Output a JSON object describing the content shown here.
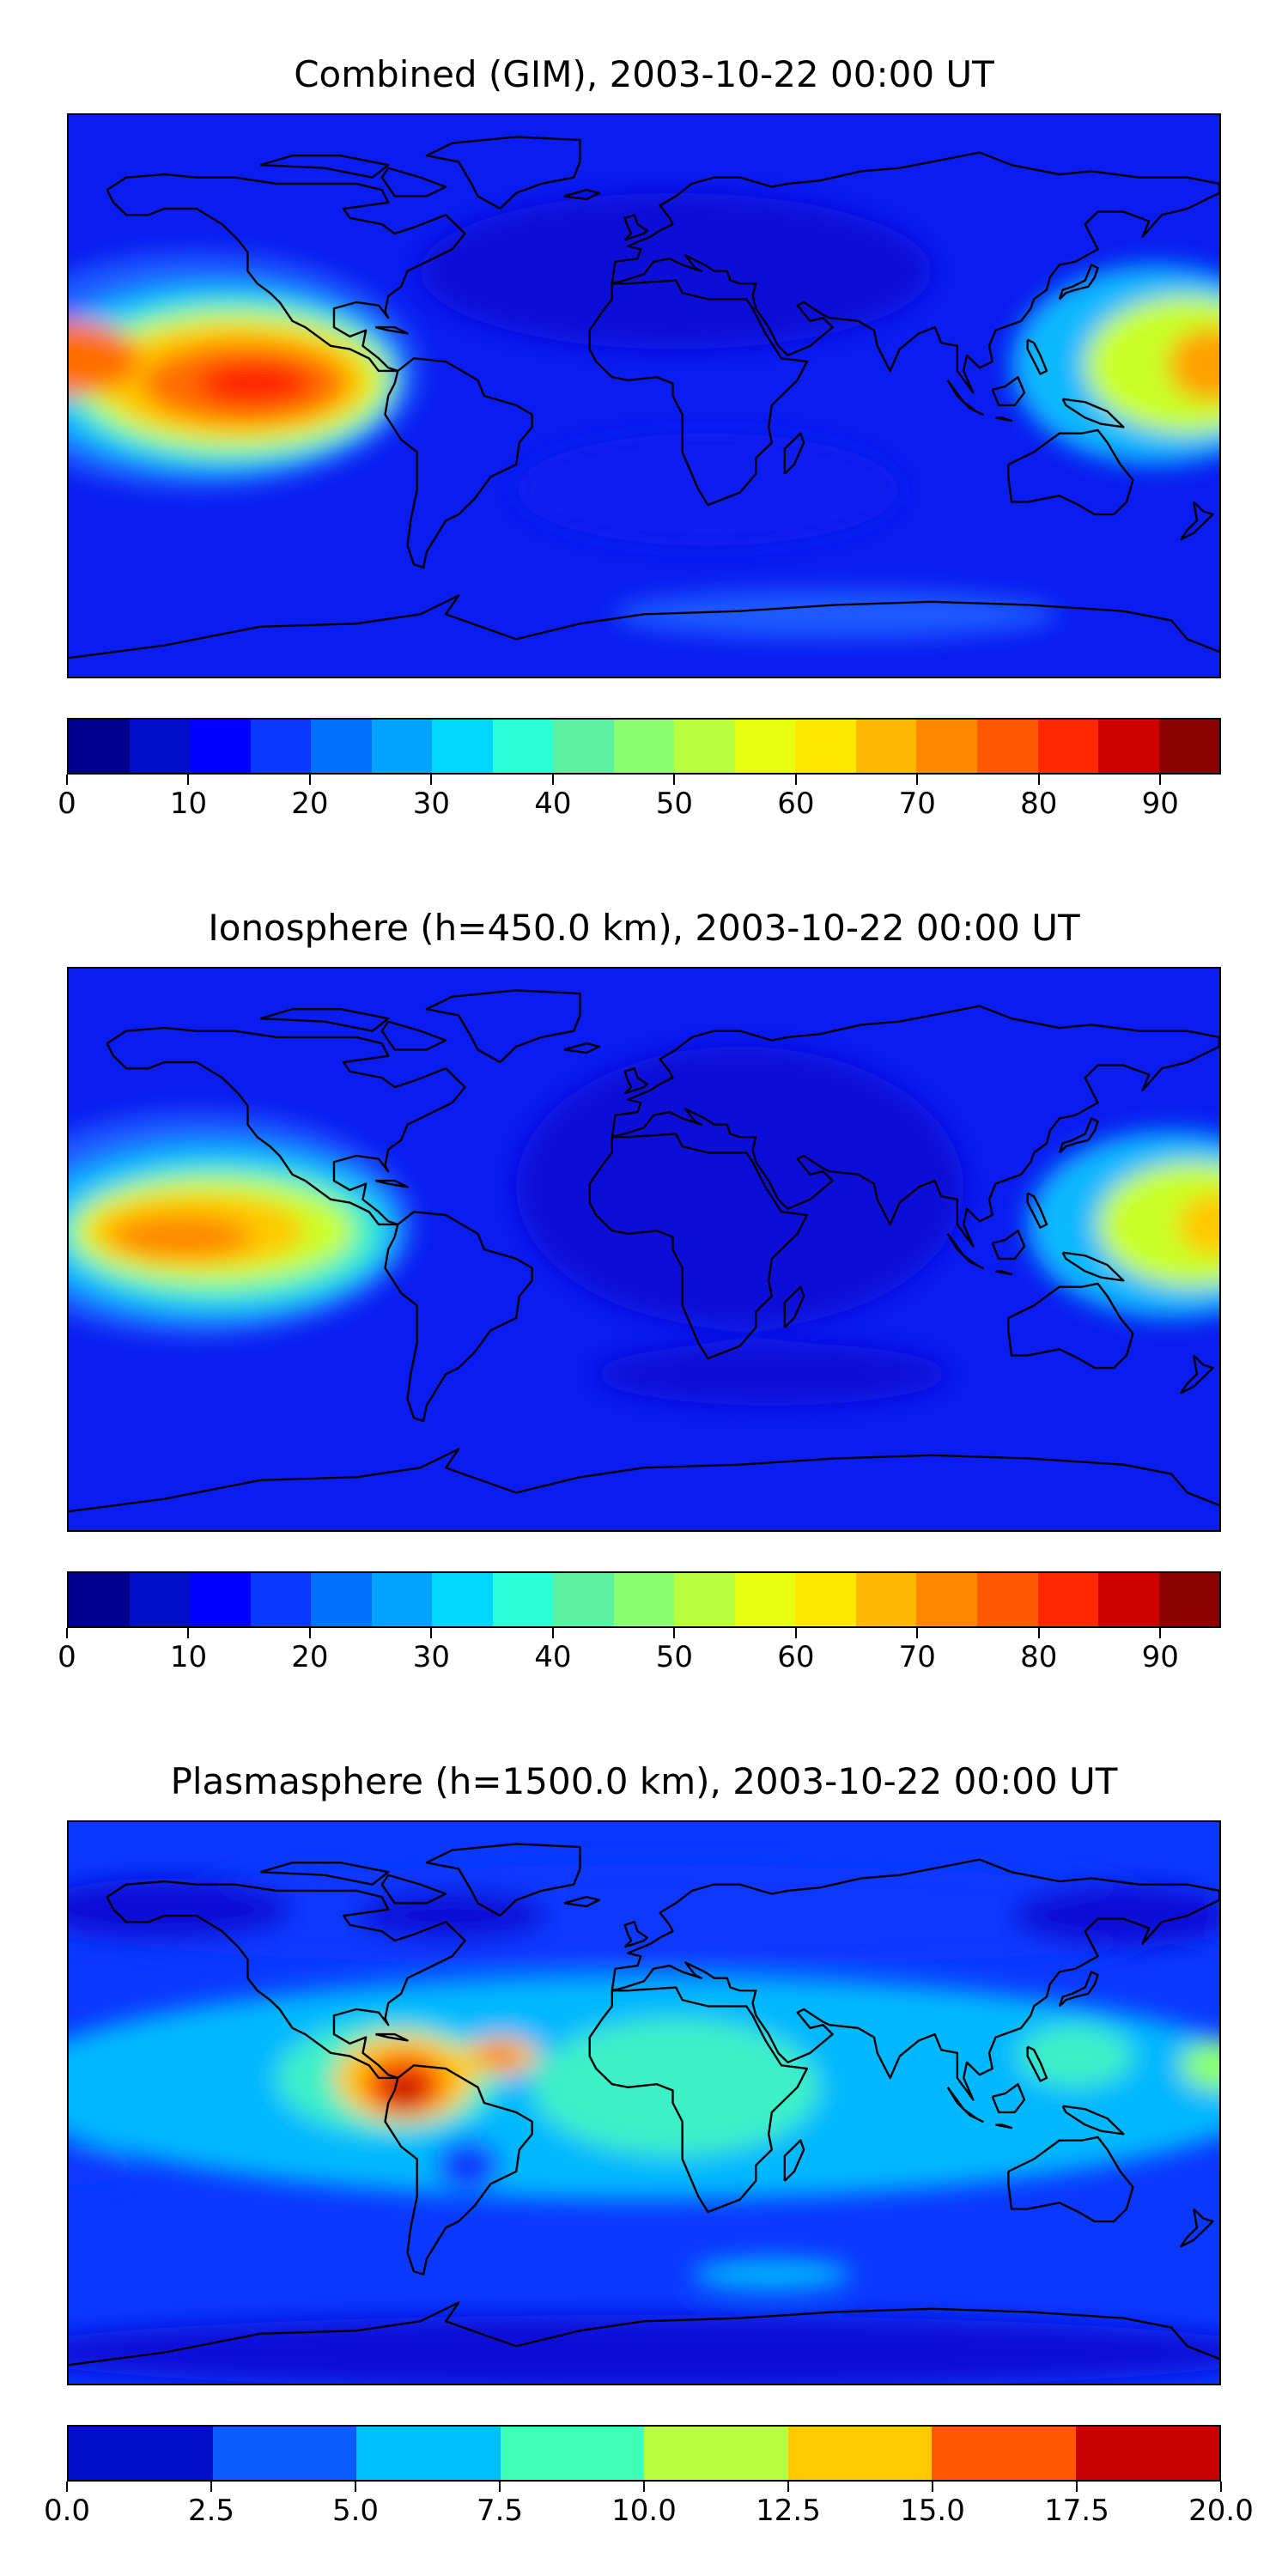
{
  "panels": [
    {
      "title": "Combined (GIM), 2003-10-22 00:00 UT",
      "base_color": "#0a1cf0",
      "blobs": [
        {
          "lon": -140,
          "lat": 8,
          "rlon": 70,
          "rlat": 38,
          "color": "#1e5cff"
        },
        {
          "lon": -135,
          "lat": 6,
          "rlon": 58,
          "rlat": 30,
          "color": "#10b8ff"
        },
        {
          "lon": -130,
          "lat": 5,
          "rlon": 52,
          "rlat": 26,
          "color": "#3cf0c8"
        },
        {
          "lon": -128,
          "lat": 5,
          "rlon": 48,
          "rlat": 22,
          "color": "#c8ff28"
        },
        {
          "lon": -128,
          "lat": 5,
          "rlon": 42,
          "rlat": 18,
          "color": "#ffc800"
        },
        {
          "lon": -125,
          "lat": 4,
          "rlon": 32,
          "rlat": 13,
          "color": "#ff6e00"
        },
        {
          "lon": -122,
          "lat": 4,
          "rlon": 18,
          "rlat": 7,
          "color": "#ff2000"
        },
        {
          "lon": -180,
          "lat": 12,
          "rlon": 22,
          "rlat": 12,
          "color": "#ff6e00"
        },
        {
          "lon": 160,
          "lat": 10,
          "rlon": 45,
          "rlat": 32,
          "color": "#10b8ff"
        },
        {
          "lon": 170,
          "lat": 10,
          "rlon": 32,
          "rlat": 22,
          "color": "#c8ff28"
        },
        {
          "lon": 178,
          "lat": 10,
          "rlon": 14,
          "rlat": 12,
          "color": "#ffa000"
        },
        {
          "lon": 10,
          "lat": 40,
          "rlon": 80,
          "rlat": 25,
          "color": "#0810d8"
        },
        {
          "lon": 20,
          "lat": -30,
          "rlon": 60,
          "rlat": 18,
          "color": "#0a1cf0"
        },
        {
          "lon": 60,
          "lat": -70,
          "rlon": 70,
          "rlat": 8,
          "color": "#1e5cff"
        }
      ],
      "colorbar": {
        "colors": [
          "#00008e",
          "#0010c8",
          "#0000ff",
          "#0a38ff",
          "#0070ff",
          "#00a4ff",
          "#00d8ff",
          "#28ffd8",
          "#5cf0a0",
          "#8cff70",
          "#b8ff40",
          "#e8ff10",
          "#ffe800",
          "#ffb800",
          "#ff8800",
          "#ff5800",
          "#ff2800",
          "#d00000",
          "#8c0000"
        ],
        "ticks": [
          "0",
          "10",
          "20",
          "30",
          "40",
          "50",
          "60",
          "70",
          "80",
          "90"
        ],
        "tick_values": [
          0,
          10,
          20,
          30,
          40,
          50,
          60,
          70,
          80,
          90
        ],
        "vmin": 0,
        "vmax": 95
      }
    },
    {
      "title": "Ionosphere  (h=450.0 km), 2003-10-22 00:00 UT",
      "base_color": "#0a1cf0",
      "blobs": [
        {
          "lon": 30,
          "lat": 20,
          "rlon": 70,
          "rlat": 45,
          "color": "#0810d8"
        },
        {
          "lon": -140,
          "lat": 8,
          "rlon": 68,
          "rlat": 36,
          "color": "#1e5cff"
        },
        {
          "lon": -135,
          "lat": 6,
          "rlon": 58,
          "rlat": 28,
          "color": "#10b8ff"
        },
        {
          "lon": -132,
          "lat": 5,
          "rlon": 50,
          "rlat": 22,
          "color": "#3cf0c8"
        },
        {
          "lon": -135,
          "lat": 6,
          "rlon": 44,
          "rlat": 17,
          "color": "#c8ff28"
        },
        {
          "lon": -140,
          "lat": 6,
          "rlon": 34,
          "rlat": 12,
          "color": "#ffc800"
        },
        {
          "lon": -145,
          "lat": 4,
          "rlon": 22,
          "rlat": 7,
          "color": "#ff8800"
        },
        {
          "lon": 165,
          "lat": 8,
          "rlon": 45,
          "rlat": 30,
          "color": "#10b8ff"
        },
        {
          "lon": 172,
          "lat": 8,
          "rlon": 30,
          "rlat": 20,
          "color": "#c8ff28"
        },
        {
          "lon": 179,
          "lat": 8,
          "rlon": 12,
          "rlat": 10,
          "color": "#ffc800"
        },
        {
          "lon": 40,
          "lat": -40,
          "rlon": 55,
          "rlat": 10,
          "color": "#0810d8"
        }
      ],
      "colorbar": {
        "colors": [
          "#00008e",
          "#0010c8",
          "#0000ff",
          "#0a38ff",
          "#0070ff",
          "#00a4ff",
          "#00d8ff",
          "#28ffd8",
          "#5cf0a0",
          "#8cff70",
          "#b8ff40",
          "#e8ff10",
          "#ffe800",
          "#ffb800",
          "#ff8800",
          "#ff5800",
          "#ff2800",
          "#d00000",
          "#8c0000"
        ],
        "ticks": [
          "0",
          "10",
          "20",
          "30",
          "40",
          "50",
          "60",
          "70",
          "80",
          "90"
        ],
        "tick_values": [
          0,
          10,
          20,
          30,
          40,
          50,
          60,
          70,
          80,
          90
        ],
        "vmin": 0,
        "vmax": 95
      }
    },
    {
      "title": "Plasmasphere (h=1500.0 km), 2003-10-22 00:00 UT",
      "base_color": "#0a38ff",
      "blobs": [
        {
          "lon": 0,
          "lat": 5,
          "rlon": 200,
          "rlat": 36,
          "color": "#00b8ff"
        },
        {
          "lon": 10,
          "lat": 5,
          "rlon": 45,
          "rlat": 22,
          "color": "#3cf0c8"
        },
        {
          "lon": -80,
          "lat": 8,
          "rlon": 35,
          "rlat": 18,
          "color": "#3cf0c8"
        },
        {
          "lon": -75,
          "lat": 8,
          "rlon": 22,
          "rlat": 14,
          "color": "#ffc800"
        },
        {
          "lon": -75,
          "lat": 6,
          "rlon": 13,
          "rlat": 10,
          "color": "#ff5800"
        },
        {
          "lon": -75,
          "lat": 4,
          "rlon": 7,
          "rlat": 6,
          "color": "#c80000"
        },
        {
          "lon": -45,
          "lat": 15,
          "rlon": 12,
          "rlat": 6,
          "color": "#ffc800"
        },
        {
          "lon": -45,
          "lat": 15,
          "rlon": 6,
          "rlat": 3,
          "color": "#ff5800"
        },
        {
          "lon": 135,
          "lat": 15,
          "rlon": 18,
          "rlat": 10,
          "color": "#3cf0c8"
        },
        {
          "lon": 180,
          "lat": 12,
          "rlon": 12,
          "rlat": 8,
          "color": "#8cff70"
        },
        {
          "lon": -175,
          "lat": -20,
          "rlon": 15,
          "rlat": 6,
          "color": "#0a38ff"
        },
        {
          "lon": -55,
          "lat": -20,
          "rlon": 10,
          "rlat": 8,
          "color": "#0a38ff"
        },
        {
          "lon": 0,
          "lat": 60,
          "rlon": 200,
          "rlat": 16,
          "color": "#0a38ff"
        },
        {
          "lon": -150,
          "lat": 62,
          "rlon": 40,
          "rlat": 10,
          "color": "#0810d8"
        },
        {
          "lon": -60,
          "lat": 60,
          "rlon": 30,
          "rlat": 8,
          "color": "#0810d8"
        },
        {
          "lon": 150,
          "lat": 60,
          "rlon": 35,
          "rlat": 10,
          "color": "#0810d8"
        },
        {
          "lon": 0,
          "lat": -80,
          "rlon": 200,
          "rlat": 12,
          "color": "#0810d8"
        },
        {
          "lon": 40,
          "lat": -55,
          "rlon": 25,
          "rlat": 5,
          "color": "#00b8ff"
        }
      ],
      "colorbar": {
        "colors": [
          "#0010c8",
          "#0a5cff",
          "#00c0ff",
          "#40ffb8",
          "#b8ff40",
          "#ffc800",
          "#ff5800",
          "#c80000"
        ],
        "ticks": [
          "0.0",
          "2.5",
          "5.0",
          "7.5",
          "10.0",
          "12.5",
          "15.0",
          "17.5",
          "20.0"
        ],
        "tick_values": [
          0,
          2.5,
          5,
          7.5,
          10,
          12.5,
          15,
          17.5,
          20
        ],
        "vmin": 0,
        "vmax": 20
      }
    }
  ]
}
